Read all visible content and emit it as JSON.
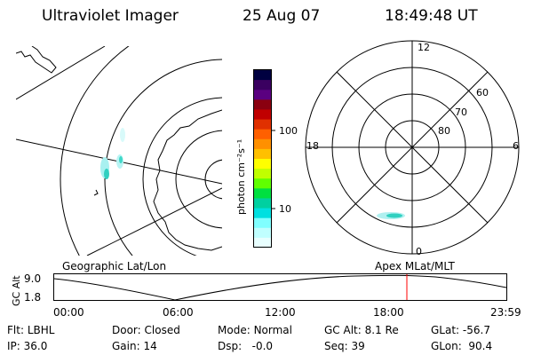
{
  "header": {
    "instrument": "Ultraviolet Imager",
    "date": "25 Aug 07",
    "time": "18:49:48 UT"
  },
  "colorbar": {
    "unit_label": "photon cm⁻²s⁻¹",
    "ticks": [
      "100",
      "10"
    ],
    "colors": [
      "#000040",
      "#3a0060",
      "#5a0080",
      "#8a0010",
      "#c00000",
      "#e03000",
      "#ff6000",
      "#ff9000",
      "#ffc000",
      "#ffff00",
      "#c0ff00",
      "#60ff00",
      "#00e040",
      "#00d0a0",
      "#00e0e0",
      "#80ffff",
      "#c0ffff",
      "#e8ffff"
    ]
  },
  "left_panel": {
    "label": "Geographic Lat/Lon"
  },
  "right_panel": {
    "label": "Apex  MLat/MLT",
    "mlt_labels": {
      "top": "12",
      "left": "18",
      "right": "6",
      "bottom": "0"
    },
    "lat_labels": [
      "60",
      "70",
      "80"
    ]
  },
  "altitude_plot": {
    "ylabel": "GC Alt",
    "yticks": [
      "9.0",
      "1.8"
    ],
    "xticks": [
      "00:00",
      "06:00",
      "12:00",
      "18:00",
      "23:59"
    ],
    "current_marker_color": "#ff0000"
  },
  "status": {
    "row1": {
      "flt_label": "Flt:",
      "flt_value": "LBHL",
      "door_label": "Door:",
      "door_value": "Closed",
      "mode_label": "Mode:",
      "mode_value": "Normal",
      "gcalt_label": "GC Alt:",
      "gcalt_value": "8.1 Re",
      "glat_label": "GLat:",
      "glat_value": "-56.7"
    },
    "row2": {
      "ip_label": "IP:",
      "ip_value": "36.0",
      "gain_label": "Gain:",
      "gain_value": "14",
      "dsp_label": "Dsp:",
      "dsp_value": "-0.0",
      "seq_label": "Seq:",
      "seq_value": "39",
      "glon_label": "GLon:",
      "glon_value": "90.4"
    }
  }
}
